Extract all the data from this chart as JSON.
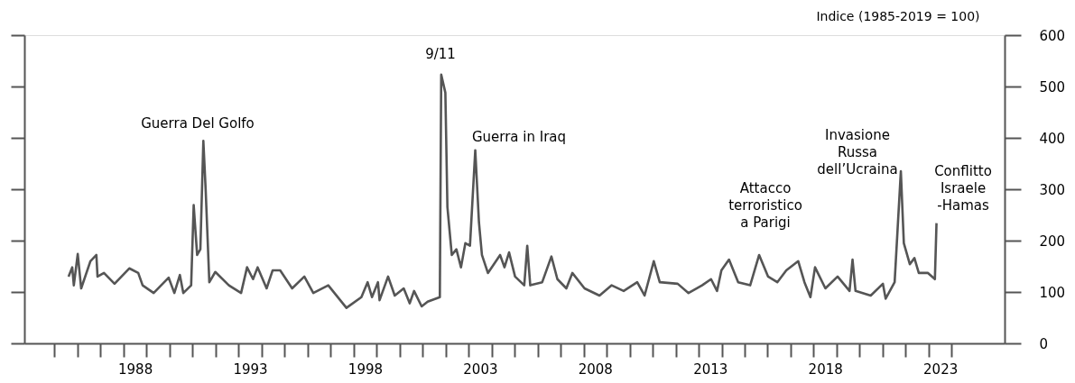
{
  "chart_data": {
    "type": "line",
    "ylabel": "Indice (1985-2019 = 100)",
    "x": [
      1985.61,
      1985.77,
      1985.84,
      1986.01,
      1986.16,
      1986.56,
      1986.82,
      1986.87,
      1987.15,
      1987.61,
      1988.25,
      1988.64,
      1988.83,
      1989.31,
      1989.96,
      1990.21,
      1990.45,
      1990.6,
      1990.94,
      1991.05,
      1991.2,
      1991.34,
      1991.47,
      1991.57,
      1991.73,
      1991.99,
      1992.58,
      1993.11,
      1993.37,
      1993.63,
      1993.83,
      1994.22,
      1994.48,
      1994.81,
      1995.33,
      1995.86,
      1996.25,
      1996.9,
      1997.69,
      1998.34,
      1998.61,
      1998.8,
      1999.06,
      1999.13,
      1999.5,
      1999.79,
      2000.18,
      2000.44,
      2000.63,
      2000.96,
      2001.22,
      2001.75,
      2001.81,
      2001.99,
      2002.08,
      2002.27,
      2002.47,
      2002.67,
      2002.86,
      2003.06,
      2003.29,
      2003.45,
      2003.58,
      2003.84,
      2004.37,
      2004.56,
      2004.76,
      2005.02,
      2005.42,
      2005.55,
      2005.68,
      2006.2,
      2006.6,
      2006.86,
      2007.25,
      2007.51,
      2008.04,
      2008.69,
      2009.22,
      2009.74,
      2010.33,
      2010.65,
      2011.05,
      2011.31,
      2012.09,
      2012.56,
      2013.15,
      2013.54,
      2013.8,
      2013.99,
      2014.32,
      2014.72,
      2015.24,
      2015.63,
      2016.02,
      2016.42,
      2016.81,
      2017.33,
      2017.6,
      2017.86,
      2018.06,
      2018.51,
      2019.04,
      2019.56,
      2019.69,
      2019.82,
      2020.48,
      2021.01,
      2021.13,
      2021.52,
      2021.79,
      2021.92,
      2022.18,
      2022.38,
      2022.57,
      2022.97,
      2023.27,
      2023.34
    ],
    "series": [
      {
        "color": "#555555",
        "values": [
          130,
          148,
          113,
          174,
          107,
          160,
          172,
          130,
          137,
          116,
          146,
          137,
          113,
          98,
          128,
          98,
          133,
          98,
          113,
          269,
          172,
          183,
          394,
          300,
          119,
          139,
          113,
          98,
          148,
          125,
          148,
          107,
          142,
          142,
          107,
          130,
          98,
          113,
          69,
          90,
          119,
          90,
          119,
          84,
          130,
          93,
          107,
          78,
          102,
          72,
          81,
          90,
          523,
          488,
          265,
          172,
          183,
          148,
          195,
          190,
          376,
          236,
          172,
          137,
          172,
          148,
          177,
          130,
          113,
          190,
          113,
          119,
          169,
          125,
          107,
          137,
          107,
          93,
          113,
          102,
          119,
          93,
          160,
          119,
          116,
          98,
          113,
          125,
          102,
          142,
          163,
          119,
          113,
          172,
          130,
          119,
          142,
          160,
          119,
          90,
          148,
          107,
          130,
          102,
          163,
          102,
          93,
          116,
          87,
          119,
          335,
          195,
          154,
          166,
          137,
          137,
          125,
          234
        ]
      }
    ],
    "xlim": [
      1983.69,
      2026.3
    ],
    "xticks": [
      {
        "value": 1985,
        "label": null
      },
      {
        "value": 1986,
        "label": null
      },
      {
        "value": 1987,
        "label": null
      },
      {
        "value": 1988,
        "label": null
      },
      {
        "value": 1988.5,
        "label": "1988"
      },
      {
        "value": 1989,
        "label": null
      },
      {
        "value": 1990,
        "label": null
      },
      {
        "value": 1991,
        "label": null
      },
      {
        "value": 1992,
        "label": null
      },
      {
        "value": 1993,
        "label": null
      },
      {
        "value": 1993.5,
        "label": "1993"
      },
      {
        "value": 1994,
        "label": null
      },
      {
        "value": 1995,
        "label": null
      },
      {
        "value": 1996,
        "label": null
      },
      {
        "value": 1997,
        "label": null
      },
      {
        "value": 1998,
        "label": null
      },
      {
        "value": 1998.5,
        "label": "1998"
      },
      {
        "value": 1999,
        "label": null
      },
      {
        "value": 2000,
        "label": null
      },
      {
        "value": 2001,
        "label": null
      },
      {
        "value": 2002,
        "label": null
      },
      {
        "value": 2003,
        "label": null
      },
      {
        "value": 2003.5,
        "label": "2003"
      },
      {
        "value": 2004,
        "label": null
      },
      {
        "value": 2005,
        "label": null
      },
      {
        "value": 2006,
        "label": null
      },
      {
        "value": 2007,
        "label": null
      },
      {
        "value": 2008,
        "label": null
      },
      {
        "value": 2008.5,
        "label": "2008"
      },
      {
        "value": 2009,
        "label": null
      },
      {
        "value": 2010,
        "label": null
      },
      {
        "value": 2011,
        "label": null
      },
      {
        "value": 2012,
        "label": null
      },
      {
        "value": 2013,
        "label": null
      },
      {
        "value": 2013.5,
        "label": "2013"
      },
      {
        "value": 2014,
        "label": null
      },
      {
        "value": 2015,
        "label": null
      },
      {
        "value": 2016,
        "label": null
      },
      {
        "value": 2017,
        "label": null
      },
      {
        "value": 2018,
        "label": null
      },
      {
        "value": 2018.5,
        "label": "2018"
      },
      {
        "value": 2019,
        "label": null
      },
      {
        "value": 2020,
        "label": null
      },
      {
        "value": 2021,
        "label": null
      },
      {
        "value": 2022,
        "label": null
      },
      {
        "value": 2023,
        "label": null
      },
      {
        "value": 2023.5,
        "label": "2023"
      },
      {
        "value": 2024,
        "label": null
      }
    ],
    "ylim": [
      0,
      600
    ],
    "yticks": [
      0,
      100,
      200,
      300,
      400,
      500,
      600
    ],
    "annotations": [
      "Guerra Del Golfo",
      "9/11",
      "Guerra in Iraq",
      "Attacco\nterroristico\na Parigi",
      "Invasione\nRussa\ndell’Ucraina",
      "Conflitto\nIsraele\n-Hamas"
    ]
  }
}
